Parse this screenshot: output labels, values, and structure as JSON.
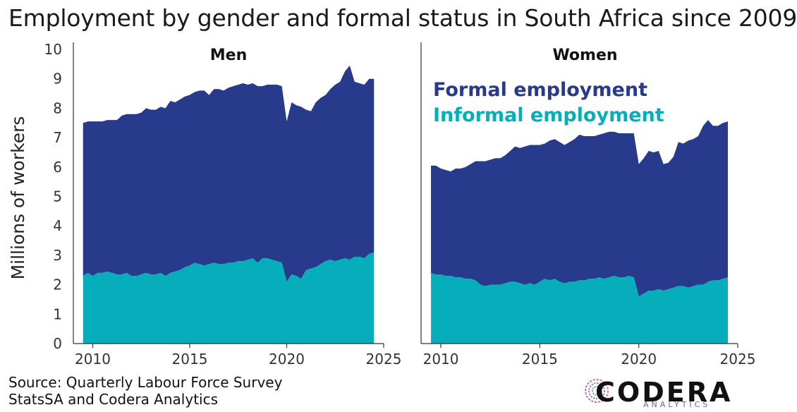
{
  "title": "Employment by gender and formal status in South Africa since 2009",
  "source_line1": "Source: Quarterly Labour Force Survey",
  "source_line2": "StatsSA and Codera Analytics",
  "logo": {
    "name": "CODERA",
    "sub": "ANALYTICS"
  },
  "colors": {
    "formal": "#273a8c",
    "informal": "#06aebb",
    "axis": "#333333",
    "tick_text": "#333333"
  },
  "chart_data": [
    {
      "type": "area",
      "title": "Men",
      "ylabel": "Millions of workers",
      "ylim": [
        0,
        10
      ],
      "yticks": [
        0,
        1,
        2,
        3,
        4,
        5,
        6,
        7,
        8,
        9,
        10
      ],
      "xlim": [
        2009,
        2025
      ],
      "xticks": [
        2010,
        2015,
        2020,
        2025
      ],
      "x": [
        2009.5,
        2009.75,
        2010,
        2010.25,
        2010.5,
        2010.75,
        2011,
        2011.25,
        2011.5,
        2011.75,
        2012,
        2012.25,
        2012.5,
        2012.75,
        2013,
        2013.25,
        2013.5,
        2013.75,
        2014,
        2014.25,
        2014.5,
        2014.75,
        2015,
        2015.25,
        2015.5,
        2015.75,
        2016,
        2016.25,
        2016.5,
        2016.75,
        2017,
        2017.25,
        2017.5,
        2017.75,
        2018,
        2018.25,
        2018.5,
        2018.75,
        2019,
        2019.25,
        2019.5,
        2019.75,
        2020,
        2020.25,
        2020.5,
        2020.75,
        2021,
        2021.25,
        2021.5,
        2021.75,
        2022,
        2022.25,
        2022.5,
        2022.75,
        2023,
        2023.25,
        2023.5,
        2023.75,
        2024,
        2024.25,
        2024.5
      ],
      "series": [
        {
          "name": "Informal employment",
          "values": [
            2.3,
            2.4,
            2.3,
            2.4,
            2.4,
            2.45,
            2.4,
            2.35,
            2.35,
            2.4,
            2.3,
            2.3,
            2.35,
            2.4,
            2.35,
            2.35,
            2.4,
            2.3,
            2.4,
            2.45,
            2.5,
            2.6,
            2.65,
            2.75,
            2.7,
            2.65,
            2.7,
            2.75,
            2.7,
            2.7,
            2.75,
            2.75,
            2.8,
            2.8,
            2.85,
            2.9,
            2.75,
            2.9,
            2.9,
            2.85,
            2.8,
            2.75,
            2.1,
            2.35,
            2.3,
            2.2,
            2.5,
            2.55,
            2.6,
            2.7,
            2.8,
            2.85,
            2.8,
            2.85,
            2.9,
            2.85,
            2.95,
            2.95,
            2.9,
            3.05,
            3.1
          ]
        },
        {
          "name": "Formal employment",
          "values": [
            5.2,
            5.15,
            5.25,
            5.15,
            5.15,
            5.15,
            5.2,
            5.25,
            5.4,
            5.4,
            5.5,
            5.5,
            5.5,
            5.6,
            5.6,
            5.6,
            5.65,
            5.7,
            5.85,
            5.75,
            5.8,
            5.8,
            5.8,
            5.8,
            5.9,
            5.95,
            5.75,
            5.9,
            5.95,
            5.9,
            5.95,
            6.0,
            6.0,
            6.05,
            5.95,
            5.95,
            6.0,
            5.85,
            5.9,
            5.95,
            6.0,
            6.0,
            5.45,
            5.85,
            5.8,
            5.85,
            5.45,
            5.35,
            5.6,
            5.65,
            5.65,
            5.8,
            6.0,
            6.05,
            6.35,
            6.6,
            5.95,
            5.9,
            5.9,
            5.95,
            5.9
          ]
        }
      ]
    },
    {
      "type": "area",
      "title": "Women",
      "ylim": [
        0,
        10
      ],
      "xlim": [
        2009,
        2025
      ],
      "xticks": [
        2010,
        2015,
        2020,
        2025
      ],
      "legend_position": "top-left",
      "x": [
        2009.5,
        2009.75,
        2010,
        2010.25,
        2010.5,
        2010.75,
        2011,
        2011.25,
        2011.5,
        2011.75,
        2012,
        2012.25,
        2012.5,
        2012.75,
        2013,
        2013.25,
        2013.5,
        2013.75,
        2014,
        2014.25,
        2014.5,
        2014.75,
        2015,
        2015.25,
        2015.5,
        2015.75,
        2016,
        2016.25,
        2016.5,
        2016.75,
        2017,
        2017.25,
        2017.5,
        2017.75,
        2018,
        2018.25,
        2018.5,
        2018.75,
        2019,
        2019.25,
        2019.5,
        2019.75,
        2020,
        2020.25,
        2020.5,
        2020.75,
        2021,
        2021.25,
        2021.5,
        2021.75,
        2022,
        2022.25,
        2022.5,
        2022.75,
        2023,
        2023.25,
        2023.5,
        2023.75,
        2024,
        2024.25,
        2024.5
      ],
      "series": [
        {
          "name": "Informal employment",
          "values": [
            2.4,
            2.35,
            2.35,
            2.3,
            2.3,
            2.25,
            2.25,
            2.2,
            2.2,
            2.15,
            2.0,
            1.95,
            2.0,
            2.0,
            2.0,
            2.05,
            2.1,
            2.1,
            2.05,
            2.0,
            2.05,
            2.0,
            2.1,
            2.2,
            2.15,
            2.2,
            2.1,
            2.05,
            2.1,
            2.1,
            2.15,
            2.15,
            2.2,
            2.2,
            2.25,
            2.2,
            2.25,
            2.3,
            2.25,
            2.25,
            2.3,
            2.25,
            1.6,
            1.7,
            1.8,
            1.8,
            1.85,
            1.8,
            1.85,
            1.9,
            1.95,
            1.95,
            1.9,
            1.95,
            2.0,
            2.0,
            2.1,
            2.15,
            2.15,
            2.2,
            2.25
          ]
        },
        {
          "name": "Formal employment",
          "values": [
            3.65,
            3.7,
            3.6,
            3.6,
            3.55,
            3.7,
            3.7,
            3.8,
            3.9,
            4.05,
            4.2,
            4.25,
            4.25,
            4.3,
            4.3,
            4.35,
            4.45,
            4.6,
            4.6,
            4.7,
            4.7,
            4.75,
            4.65,
            4.6,
            4.75,
            4.75,
            4.75,
            4.7,
            4.75,
            4.85,
            4.95,
            4.9,
            4.85,
            4.85,
            4.85,
            4.95,
            4.95,
            4.9,
            4.9,
            4.9,
            4.85,
            4.9,
            4.5,
            4.6,
            4.75,
            4.7,
            4.7,
            4.3,
            4.3,
            4.45,
            4.9,
            4.85,
            5.0,
            5.0,
            5.05,
            5.4,
            5.5,
            5.25,
            5.25,
            5.3,
            5.3
          ]
        }
      ]
    }
  ]
}
